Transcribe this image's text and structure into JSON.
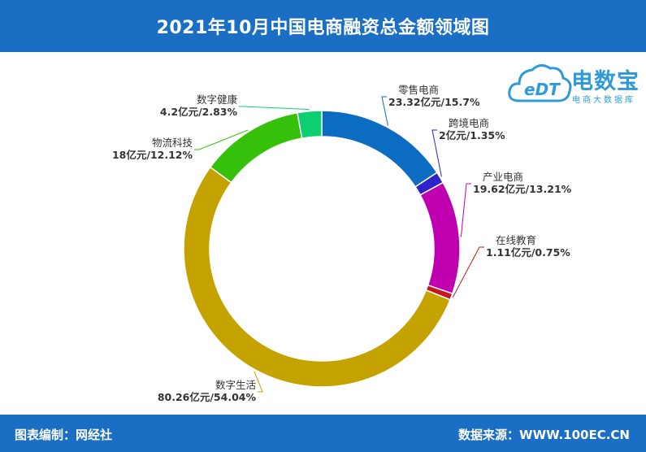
{
  "header": {
    "title": "2021年10月中国电商融资总金额领域图"
  },
  "footer": {
    "left": "图表编制：网经社",
    "right": "数据来源：WWW.100EC.CN"
  },
  "logo": {
    "name": "电数宝",
    "sub": "电商大数据库",
    "mark": "eDT",
    "color": "#2e9ad8"
  },
  "chart_data": {
    "type": "pie",
    "title": "2021年10月中国电商融资总金额领域图",
    "unit": "亿元",
    "donut": true,
    "slices": [
      {
        "name": "零售电商",
        "value": 23.32,
        "percent": 15.7,
        "label_value": "23.32亿元/15.7%",
        "color": "#0b6cc2"
      },
      {
        "name": "跨境电商",
        "value": 2,
        "percent": 1.35,
        "label_value": "2亿元/1.35%",
        "color": "#2d23c9"
      },
      {
        "name": "产业电商",
        "value": 19.62,
        "percent": 13.21,
        "label_value": "19.62亿元/13.21%",
        "color": "#c000b0"
      },
      {
        "name": "在线教育",
        "value": 1.11,
        "percent": 0.75,
        "label_value": "1.11亿元/0.75%",
        "color": "#c8161d"
      },
      {
        "name": "数字生活",
        "value": 80.26,
        "percent": 54.04,
        "label_value": "80.26亿元/54.04%",
        "color": "#c4a300"
      },
      {
        "name": "物流科技",
        "value": 18,
        "percent": 12.12,
        "label_value": "18亿元/12.12%",
        "color": "#35c10a"
      },
      {
        "name": "数字健康",
        "value": 4.2,
        "percent": 2.83,
        "label_value": "4.2亿元/2.83%",
        "color": "#0ccf72"
      }
    ]
  }
}
